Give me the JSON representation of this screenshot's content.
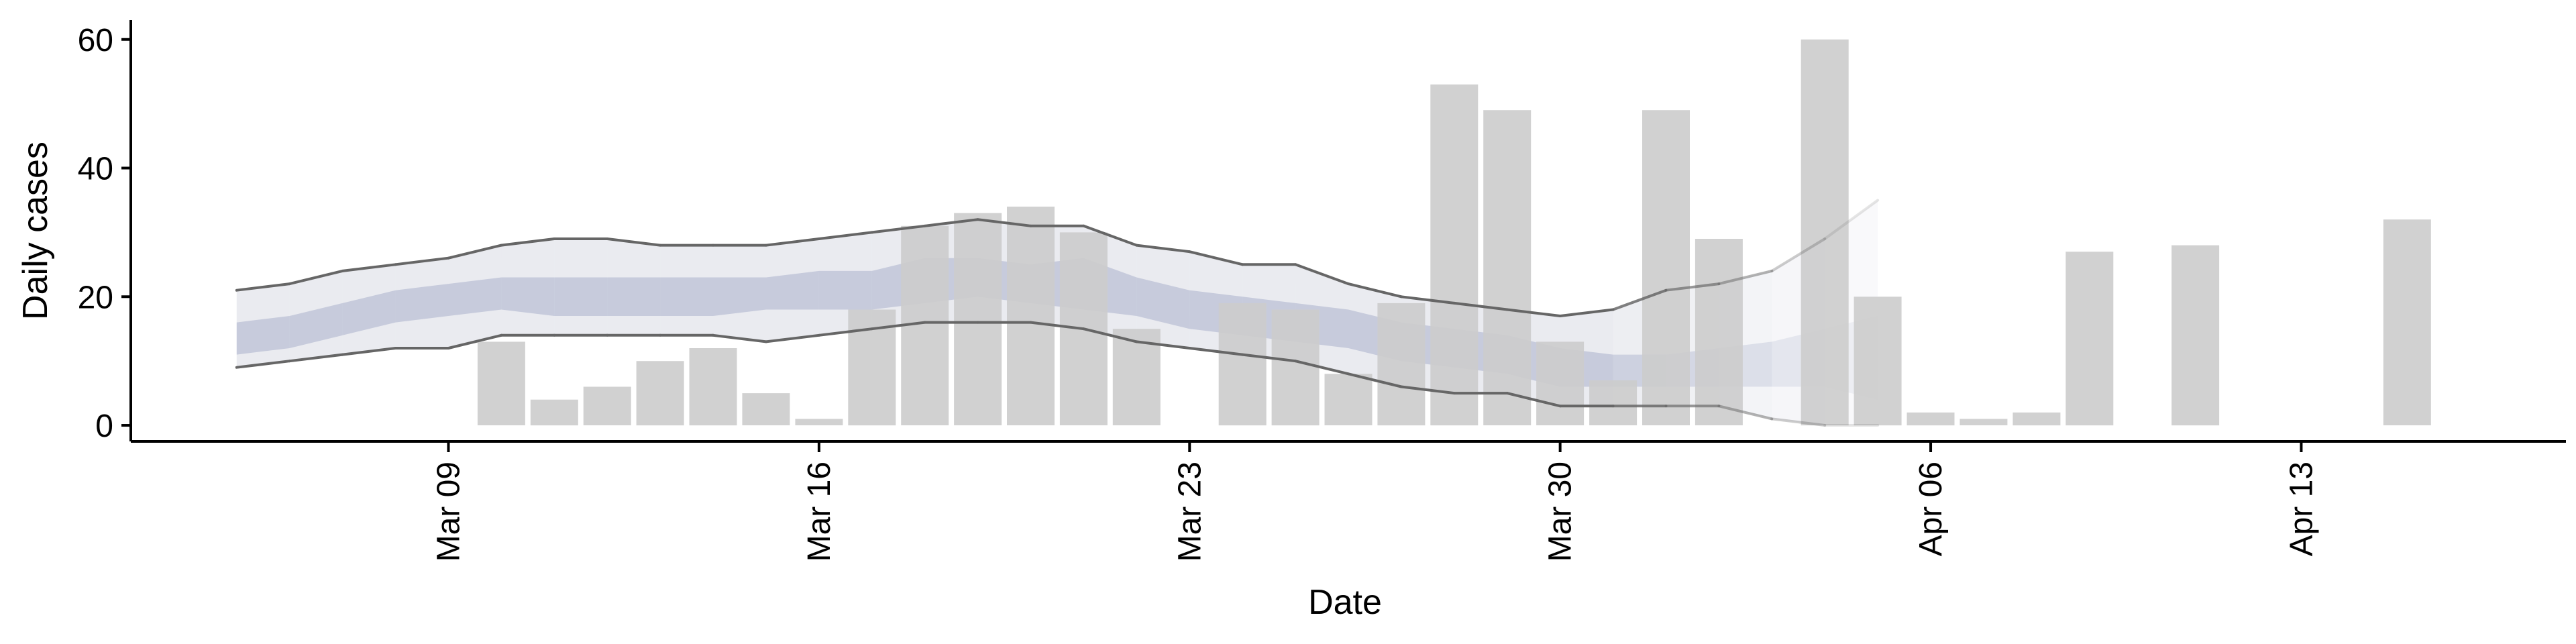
{
  "chart_data": {
    "type": "bar",
    "title": "",
    "xlabel": "Date",
    "ylabel": "Daily cases",
    "ylim": [
      -2.5,
      63
    ],
    "xlim": [
      "2020-03-03",
      "2020-04-18"
    ],
    "grid": false,
    "legend": "none",
    "y_ticks": [
      "0",
      "20",
      "40",
      "60"
    ],
    "x_ticks": [
      {
        "label": "Mar 09",
        "date": "2020-03-09"
      },
      {
        "label": "Mar 16",
        "date": "2020-03-16"
      },
      {
        "label": "Mar 23",
        "date": "2020-03-23"
      },
      {
        "label": "Mar 30",
        "date": "2020-03-30"
      },
      {
        "label": "Apr 06",
        "date": "2020-04-06"
      },
      {
        "label": "Apr 13",
        "date": "2020-04-13"
      }
    ],
    "bars": [
      {
        "date": "2020-03-10",
        "value": 13
      },
      {
        "date": "2020-03-11",
        "value": 4
      },
      {
        "date": "2020-03-12",
        "value": 6
      },
      {
        "date": "2020-03-13",
        "value": 10
      },
      {
        "date": "2020-03-14",
        "value": 12
      },
      {
        "date": "2020-03-15",
        "value": 5
      },
      {
        "date": "2020-03-16",
        "value": 1
      },
      {
        "date": "2020-03-17",
        "value": 18
      },
      {
        "date": "2020-03-18",
        "value": 31
      },
      {
        "date": "2020-03-19",
        "value": 33
      },
      {
        "date": "2020-03-20",
        "value": 34
      },
      {
        "date": "2020-03-21",
        "value": 30
      },
      {
        "date": "2020-03-22",
        "value": 15
      },
      {
        "date": "2020-03-24",
        "value": 19
      },
      {
        "date": "2020-03-25",
        "value": 18
      },
      {
        "date": "2020-03-26",
        "value": 8
      },
      {
        "date": "2020-03-27",
        "value": 19
      },
      {
        "date": "2020-03-28",
        "value": 53
      },
      {
        "date": "2020-03-29",
        "value": 49
      },
      {
        "date": "2020-03-30",
        "value": 13
      },
      {
        "date": "2020-03-31",
        "value": 7
      },
      {
        "date": "2020-04-01",
        "value": 49
      },
      {
        "date": "2020-04-02",
        "value": 29
      },
      {
        "date": "2020-04-04",
        "value": 60
      },
      {
        "date": "2020-04-05",
        "value": 20
      },
      {
        "date": "2020-04-06",
        "value": 2
      },
      {
        "date": "2020-04-07",
        "value": 1
      },
      {
        "date": "2020-04-08",
        "value": 2
      },
      {
        "date": "2020-04-09",
        "value": 27
      },
      {
        "date": "2020-04-11",
        "value": 28
      },
      {
        "date": "2020-04-15",
        "value": 32
      }
    ],
    "bar_color": "#cccccc",
    "series": [
      {
        "kind": "band_outer",
        "color": "#c8cad8",
        "x": [
          "2020-03-05",
          "2020-03-06",
          "2020-03-07",
          "2020-03-08",
          "2020-03-09",
          "2020-03-10",
          "2020-03-11",
          "2020-03-12",
          "2020-03-13",
          "2020-03-14",
          "2020-03-15",
          "2020-03-16",
          "2020-03-17",
          "2020-03-18",
          "2020-03-19",
          "2020-03-20",
          "2020-03-21",
          "2020-03-22",
          "2020-03-23",
          "2020-03-24",
          "2020-03-25",
          "2020-03-26",
          "2020-03-27",
          "2020-03-28",
          "2020-03-29",
          "2020-03-30",
          "2020-03-31",
          "2020-04-01",
          "2020-04-02",
          "2020-04-03",
          "2020-04-04",
          "2020-04-05"
        ],
        "upper": [
          21,
          22,
          24,
          25,
          26,
          28,
          29,
          29,
          28,
          28,
          28,
          29,
          30,
          31,
          32,
          31,
          31,
          28,
          27,
          25,
          25,
          22,
          20,
          19,
          18,
          17,
          18,
          21,
          22,
          24,
          29,
          35
        ],
        "lower": [
          9,
          10,
          11,
          12,
          12,
          14,
          14,
          14,
          14,
          14,
          13,
          14,
          15,
          16,
          16,
          16,
          15,
          13,
          12,
          11,
          10,
          8,
          6,
          5,
          5,
          3,
          3,
          3,
          3,
          1,
          0,
          0
        ]
      },
      {
        "kind": "band_inner",
        "color": "#a9b1cc",
        "x": [
          "2020-03-05",
          "2020-03-06",
          "2020-03-07",
          "2020-03-08",
          "2020-03-09",
          "2020-03-10",
          "2020-03-11",
          "2020-03-12",
          "2020-03-13",
          "2020-03-14",
          "2020-03-15",
          "2020-03-16",
          "2020-03-17",
          "2020-03-18",
          "2020-03-19",
          "2020-03-20",
          "2020-03-21",
          "2020-03-22",
          "2020-03-23",
          "2020-03-24",
          "2020-03-25",
          "2020-03-26",
          "2020-03-27",
          "2020-03-28",
          "2020-03-29",
          "2020-03-30",
          "2020-03-31",
          "2020-04-01",
          "2020-04-02",
          "2020-04-03",
          "2020-04-04",
          "2020-04-05"
        ],
        "upper": [
          16,
          17,
          19,
          21,
          22,
          23,
          23,
          23,
          23,
          23,
          23,
          24,
          24,
          26,
          26,
          25,
          26,
          23,
          21,
          20,
          19,
          18,
          16,
          15,
          14,
          12,
          11,
          11,
          12,
          13,
          15,
          17
        ],
        "lower": [
          11,
          12,
          14,
          16,
          17,
          18,
          17,
          17,
          17,
          17,
          18,
          18,
          18,
          19,
          20,
          19,
          18,
          17,
          15,
          14,
          13,
          12,
          10,
          9,
          8,
          6,
          6,
          6,
          6,
          6,
          6,
          4
        ]
      }
    ]
  }
}
